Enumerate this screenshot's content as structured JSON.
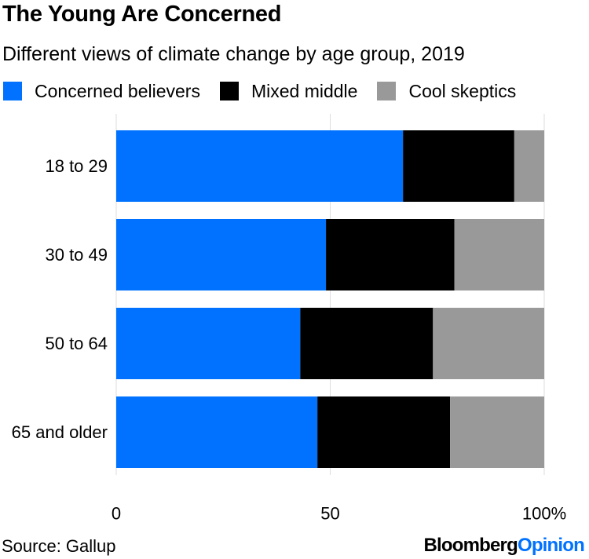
{
  "title": "The Young Are Concerned",
  "subtitle": "Different views of climate change by age group, 2019",
  "source": "Source: Gallup",
  "brand": {
    "first": "Bloomberg",
    "second": "Opinion"
  },
  "colors": {
    "concerned": "#0072ff",
    "mixed": "#000000",
    "skeptics": "#999999",
    "gridline": "#dddddd",
    "text": "#000000"
  },
  "chart_data": {
    "type": "bar",
    "orientation": "horizontal",
    "stacked": true,
    "title": "The Young Are Concerned",
    "subtitle": "Different views of climate change by age group, 2019",
    "categories": [
      "18 to 29",
      "30 to 49",
      "50 to 64",
      "65 and older"
    ],
    "series": [
      {
        "name": "Concerned believers",
        "color": "#0072ff",
        "values": [
          67,
          49,
          43,
          47
        ]
      },
      {
        "name": "Mixed middle",
        "color": "#000000",
        "values": [
          26,
          30,
          31,
          31
        ]
      },
      {
        "name": "Cool skeptics",
        "color": "#999999",
        "values": [
          7,
          21,
          26,
          22
        ]
      }
    ],
    "xlim": [
      0,
      100
    ],
    "xticks": [
      0,
      50,
      100
    ],
    "xtick_labels": [
      "0",
      "50",
      "100%"
    ],
    "xlabel": "",
    "ylabel": "",
    "grid": true,
    "legend": "top-left"
  }
}
